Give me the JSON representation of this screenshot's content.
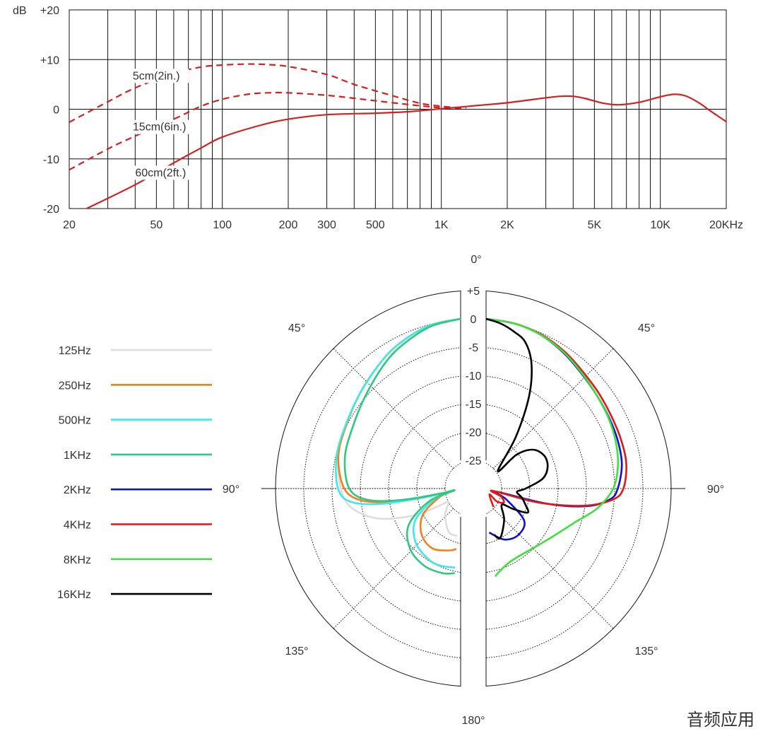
{
  "chart_data": [
    {
      "type": "line",
      "title": "",
      "xlabel": "",
      "ylabel": "dB",
      "x_scale": "log",
      "xlim": [
        20,
        20000
      ],
      "ylim": [
        -20,
        20
      ],
      "grid": true,
      "x_ticks": [
        {
          "value": 20,
          "label": "20"
        },
        {
          "value": 50,
          "label": "50"
        },
        {
          "value": 100,
          "label": "100"
        },
        {
          "value": 200,
          "label": "200"
        },
        {
          "value": 300,
          "label": "300"
        },
        {
          "value": 500,
          "label": "500"
        },
        {
          "value": 1000,
          "label": "1K"
        },
        {
          "value": 2000,
          "label": "2K"
        },
        {
          "value": 5000,
          "label": "5K"
        },
        {
          "value": 10000,
          "label": "10K"
        },
        {
          "value": 20000,
          "label": "20KHz"
        }
      ],
      "y_ticks": [
        {
          "value": 20,
          "label": "+20"
        },
        {
          "value": 10,
          "label": "+10"
        },
        {
          "value": 0,
          "label": "0"
        },
        {
          "value": -10,
          "label": "-10"
        },
        {
          "value": -20,
          "label": "-20"
        }
      ],
      "series": [
        {
          "name": "5cm(2in.)",
          "style": "dashed",
          "color": "#d42020",
          "points": [
            [
              20,
              -2.6
            ],
            [
              30,
              1.5
            ],
            [
              40,
              4.3
            ],
            [
              60,
              7.2
            ],
            [
              80,
              8.5
            ],
            [
              100,
              8.9
            ],
            [
              130,
              9.1
            ],
            [
              160,
              9.0
            ],
            [
              200,
              8.6
            ],
            [
              300,
              7.0
            ],
            [
              400,
              5.0
            ],
            [
              600,
              2.7
            ],
            [
              800,
              1.2
            ],
            [
              1000,
              0.6
            ],
            [
              1200,
              0.3
            ]
          ]
        },
        {
          "name": "15cm(6in.)",
          "style": "dashed",
          "color": "#d42020",
          "points": [
            [
              20,
              -12.2
            ],
            [
              30,
              -8.0
            ],
            [
              40,
              -5.4
            ],
            [
              60,
              -2.0
            ],
            [
              80,
              0.6
            ],
            [
              100,
              2.0
            ],
            [
              130,
              3.0
            ],
            [
              160,
              3.3
            ],
            [
              200,
              3.3
            ],
            [
              300,
              2.8
            ],
            [
              400,
              2.2
            ],
            [
              600,
              1.3
            ],
            [
              800,
              0.7
            ],
            [
              1000,
              0.3
            ],
            [
              1300,
              0.2
            ]
          ]
        },
        {
          "name": "60cm(2ft.)",
          "style": "solid",
          "color": "#d42020",
          "points": [
            [
              24,
              -20
            ],
            [
              40,
              -15.2
            ],
            [
              60,
              -10.8
            ],
            [
              80,
              -7.8
            ],
            [
              100,
              -5.6
            ],
            [
              150,
              -3.2
            ],
            [
              200,
              -2.0
            ],
            [
              300,
              -1.1
            ],
            [
              500,
              -0.8
            ],
            [
              700,
              -0.5
            ],
            [
              1000,
              0.1
            ],
            [
              1500,
              0.8
            ],
            [
              2000,
              1.3
            ],
            [
              3000,
              2.3
            ],
            [
              3500,
              2.6
            ],
            [
              4000,
              2.6
            ],
            [
              4500,
              2.2
            ],
            [
              5500,
              1.2
            ],
            [
              6500,
              0.9
            ],
            [
              8000,
              1.4
            ],
            [
              10000,
              2.5
            ],
            [
              11500,
              3.0
            ],
            [
              13000,
              2.7
            ],
            [
              15000,
              1.3
            ],
            [
              17000,
              -0.4
            ],
            [
              20000,
              -2.5
            ]
          ]
        }
      ]
    },
    {
      "type": "polar",
      "title": "",
      "r_unit": "dB",
      "rlim": [
        -30,
        5
      ],
      "r_ticks": [
        {
          "value": 5,
          "label": "+5"
        },
        {
          "value": 0,
          "label": "0"
        },
        {
          "value": -5,
          "label": "-5"
        },
        {
          "value": -10,
          "label": "-10"
        },
        {
          "value": -15,
          "label": "-15"
        },
        {
          "value": -20,
          "label": "-20"
        },
        {
          "value": -25,
          "label": "-25"
        }
      ],
      "angle_labels": [
        {
          "deg": 0,
          "label": "0°"
        },
        {
          "deg": -45,
          "label": "45°"
        },
        {
          "deg": 45,
          "label": "45°"
        },
        {
          "deg": -90,
          "label": "90°"
        },
        {
          "deg": 90,
          "label": "90°"
        },
        {
          "deg": -135,
          "label": "135°"
        },
        {
          "deg": 135,
          "label": "135°"
        },
        {
          "deg": 180,
          "label": "180°"
        }
      ],
      "legend_position": "left",
      "series": [
        {
          "name": "125Hz",
          "color": "#dddddd",
          "side": "left",
          "points": [
            [
              0,
              0
            ],
            [
              10,
              -0.6
            ],
            [
              20,
              -1.8
            ],
            [
              30,
              -3.2
            ],
            [
              45,
              -5.3
            ],
            [
              60,
              -6.8
            ],
            [
              75,
              -7.6
            ],
            [
              90,
              -8.8
            ],
            [
              100,
              -10.4
            ],
            [
              110,
              -14.5
            ],
            [
              120,
              -20.5
            ],
            [
              130,
              -25.5
            ],
            [
              138,
              -26.8
            ],
            [
              150,
              -24.5
            ],
            [
              165,
              -22.0
            ],
            [
              176,
              -21.6
            ]
          ]
        },
        {
          "name": "250Hz",
          "color": "#f08020",
          "side": "left",
          "points": [
            [
              0,
              0
            ],
            [
              10,
              -0.6
            ],
            [
              20,
              -1.8
            ],
            [
              30,
              -3.2
            ],
            [
              45,
              -5.3
            ],
            [
              60,
              -6.8
            ],
            [
              75,
              -7.6
            ],
            [
              90,
              -9.4
            ],
            [
              97,
              -12.5
            ],
            [
              101,
              -18.0
            ],
            [
              104,
              -24.5
            ],
            [
              106,
              -28.8
            ],
            [
              112,
              -26.0
            ],
            [
              125,
              -21.8
            ],
            [
              140,
              -19.3
            ],
            [
              155,
              -18.3
            ],
            [
              170,
              -18.9
            ],
            [
              176,
              -19.3
            ]
          ]
        },
        {
          "name": "500Hz",
          "color": "#40e8e8",
          "side": "left",
          "points": [
            [
              0,
              0
            ],
            [
              10,
              -0.6
            ],
            [
              20,
              -1.8
            ],
            [
              30,
              -3.2
            ],
            [
              45,
              -5.3
            ],
            [
              60,
              -6.7
            ],
            [
              75,
              -7.3
            ],
            [
              90,
              -8.3
            ],
            [
              97,
              -10.5
            ],
            [
              101,
              -16.0
            ],
            [
              104,
              -24.0
            ],
            [
              106,
              -28.8
            ],
            [
              112,
              -25.0
            ],
            [
              125,
              -20.2
            ],
            [
              140,
              -17.6
            ],
            [
              155,
              -16.3
            ],
            [
              165,
              -15.9
            ],
            [
              176,
              -16.0
            ]
          ]
        },
        {
          "name": "1KHz",
          "color": "#30c880",
          "side": "left",
          "points": [
            [
              0,
              0
            ],
            [
              10,
              -0.8
            ],
            [
              20,
              -2.3
            ],
            [
              30,
              -3.9
            ],
            [
              45,
              -6.4
            ],
            [
              60,
              -8.0
            ],
            [
              75,
              -8.8
            ],
            [
              90,
              -10.3
            ],
            [
              97,
              -13.5
            ],
            [
              101,
              -19.5
            ],
            [
              104,
              -26.5
            ],
            [
              106,
              -28.8
            ],
            [
              112,
              -24.0
            ],
            [
              125,
              -18.8
            ],
            [
              140,
              -16.1
            ],
            [
              155,
              -14.9
            ],
            [
              168,
              -14.7
            ],
            [
              176,
              -15.0
            ]
          ]
        },
        {
          "name": "2KHz",
          "color": "#1010d0",
          "side": "right",
          "points": [
            [
              0,
              0
            ],
            [
              10,
              -0.4
            ],
            [
              20,
              -1.2
            ],
            [
              30,
              -2.4
            ],
            [
              40,
              -3.6
            ],
            [
              50,
              -4.4
            ],
            [
              60,
              -4.9
            ],
            [
              70,
              -5.2
            ],
            [
              80,
              -5.6
            ],
            [
              90,
              -6.7
            ],
            [
              95,
              -8.0
            ],
            [
              100,
              -12.0
            ],
            [
              104,
              -19.0
            ],
            [
              108,
              -28.3
            ],
            [
              118,
              -26.0
            ],
            [
              130,
              -21.2
            ],
            [
              145,
              -20.0
            ],
            [
              160,
              -20.4
            ],
            [
              176,
              -22.2
            ]
          ]
        },
        {
          "name": "4KHz",
          "color": "#e01818",
          "side": "right",
          "points": [
            [
              0,
              0
            ],
            [
              10,
              -0.4
            ],
            [
              20,
              -1.1
            ],
            [
              30,
              -2.1
            ],
            [
              40,
              -3.2
            ],
            [
              50,
              -3.9
            ],
            [
              60,
              -4.4
            ],
            [
              70,
              -4.6
            ],
            [
              80,
              -4.8
            ],
            [
              90,
              -5.7
            ],
            [
              95,
              -7.5
            ],
            [
              100,
              -12.5
            ],
            [
              105,
              -20.5
            ],
            [
              109,
              -28.8
            ],
            [
              118,
              -27.0
            ],
            [
              128,
              -26.0
            ],
            [
              140,
              -27.0
            ],
            [
              150,
              -28.8
            ],
            [
              158,
              -26.5
            ]
          ]
        },
        {
          "name": "8KHz",
          "color": "#40e040",
          "side": "right",
          "points": [
            [
              0,
              0
            ],
            [
              10,
              -0.4
            ],
            [
              20,
              -1.2
            ],
            [
              30,
              -2.3
            ],
            [
              40,
              -3.5
            ],
            [
              50,
              -4.4
            ],
            [
              60,
              -5.0
            ],
            [
              70,
              -5.6
            ],
            [
              80,
              -6.3
            ],
            [
              90,
              -7.5
            ],
            [
              100,
              -10.0
            ],
            [
              110,
              -13.0
            ],
            [
              125,
              -15.4
            ],
            [
              140,
              -16.5
            ],
            [
              160,
              -16.5
            ],
            [
              170,
              -15.3
            ],
            [
              174,
              -14.4
            ]
          ]
        },
        {
          "name": "16KHz",
          "color": "#000000",
          "side": "right",
          "points": [
            [
              0,
              0
            ],
            [
              5,
              -0.7
            ],
            [
              10,
              -1.8
            ],
            [
              15,
              -3.2
            ],
            [
              20,
              -6.5
            ],
            [
              25,
              -12.0
            ],
            [
              30,
              -19.5
            ],
            [
              34,
              -26.3
            ],
            [
              42,
              -22.0
            ],
            [
              50,
              -19.3
            ],
            [
              60,
              -18.2
            ],
            [
              70,
              -18.4
            ],
            [
              80,
              -19.8
            ],
            [
              90,
              -23.0
            ],
            [
              96,
              -24.5
            ],
            [
              104,
              -23.5
            ],
            [
              112,
              -22.5
            ],
            [
              120,
              -21.5
            ],
            [
              127,
              -24.0
            ],
            [
              136,
              -26.0
            ],
            [
              150,
              -23.6
            ],
            [
              164,
              -20.9
            ],
            [
              170,
              -21.7
            ]
          ]
        }
      ]
    }
  ],
  "watermark": "音频应用"
}
